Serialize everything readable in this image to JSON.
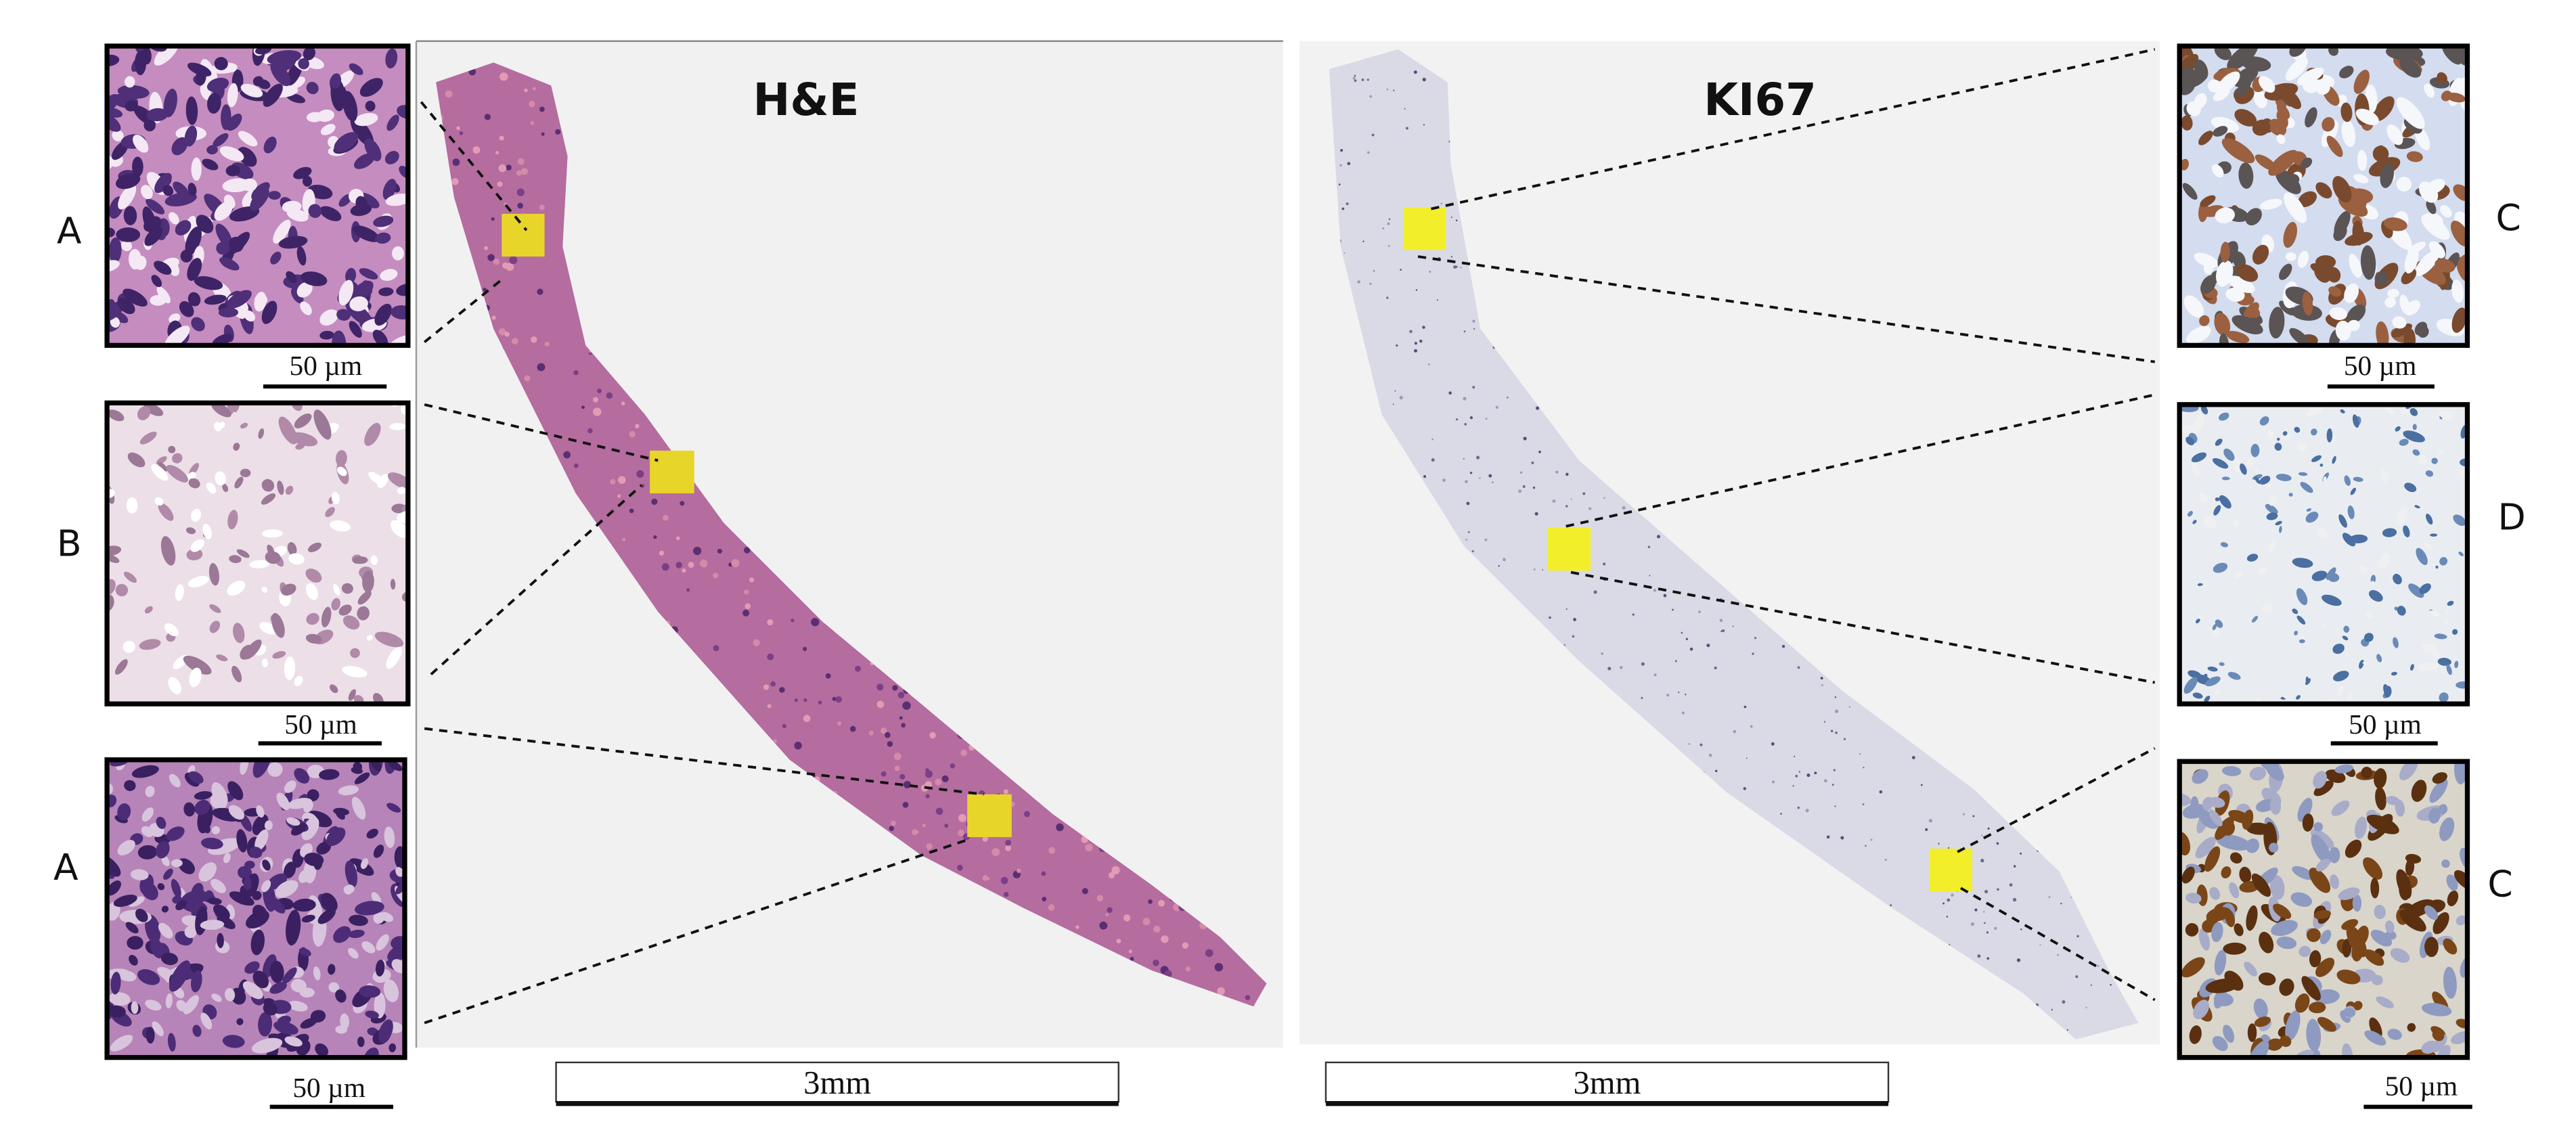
{
  "figure": {
    "he_panel": {
      "title": "H&E",
      "scale_bar": "3mm"
    },
    "ki67_panel": {
      "title": "KI67",
      "scale_bar": "3mm"
    },
    "left_insets": [
      {
        "label": "A",
        "scale_bar": "50 µm"
      },
      {
        "label": "B",
        "scale_bar": "50 µm"
      },
      {
        "label": "A",
        "scale_bar": "50 µm"
      }
    ],
    "right_insets": [
      {
        "label": "C",
        "scale_bar": "50 µm"
      },
      {
        "label": "D",
        "scale_bar": "50 µm"
      },
      {
        "label": "C",
        "scale_bar": "50 µm"
      }
    ],
    "colors": {
      "roi": "#f2e62a",
      "he_tissue": "#a8609a",
      "ki67_tissue": "#d6d7e3"
    }
  }
}
